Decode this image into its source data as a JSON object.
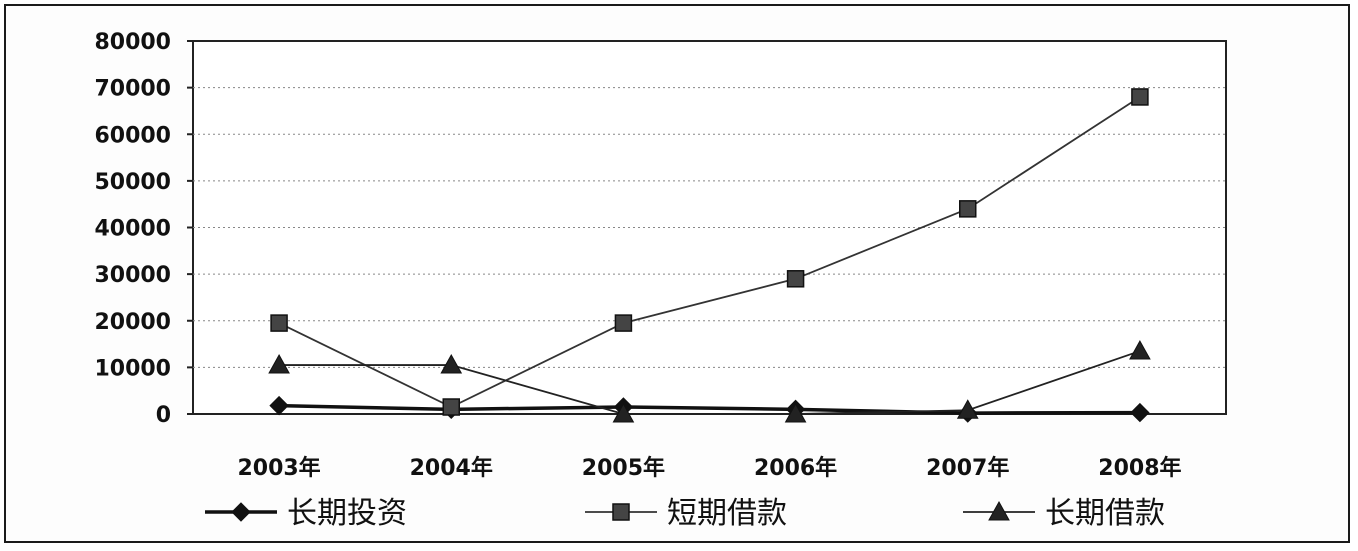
{
  "chart_data": {
    "type": "line",
    "title": "",
    "xlabel": "",
    "ylabel": "",
    "categories": [
      "2003年",
      "2004年",
      "2005年",
      "2006年",
      "2007年",
      "2008年"
    ],
    "ylim": [
      0,
      80000
    ],
    "yticks": [
      "0",
      "10000",
      "20000",
      "30000",
      "40000",
      "50000",
      "60000",
      "70000",
      "80000"
    ],
    "grid": "horizontal dotted",
    "legend_position": "bottom",
    "series": [
      {
        "name": "长期投资",
        "marker": "diamond",
        "line_weight": "thick",
        "color": "#111111",
        "values": [
          1800,
          1000,
          1500,
          1000,
          200,
          300
        ]
      },
      {
        "name": "短期借款",
        "marker": "square",
        "line_weight": "thin",
        "color": "#333333",
        "values": [
          19500,
          1500,
          19500,
          29000,
          44000,
          68000
        ]
      },
      {
        "name": "长期借款",
        "marker": "triangle",
        "line_weight": "thin",
        "color": "#222222",
        "values": [
          10500,
          10500,
          0,
          0,
          800,
          13500
        ]
      }
    ]
  }
}
